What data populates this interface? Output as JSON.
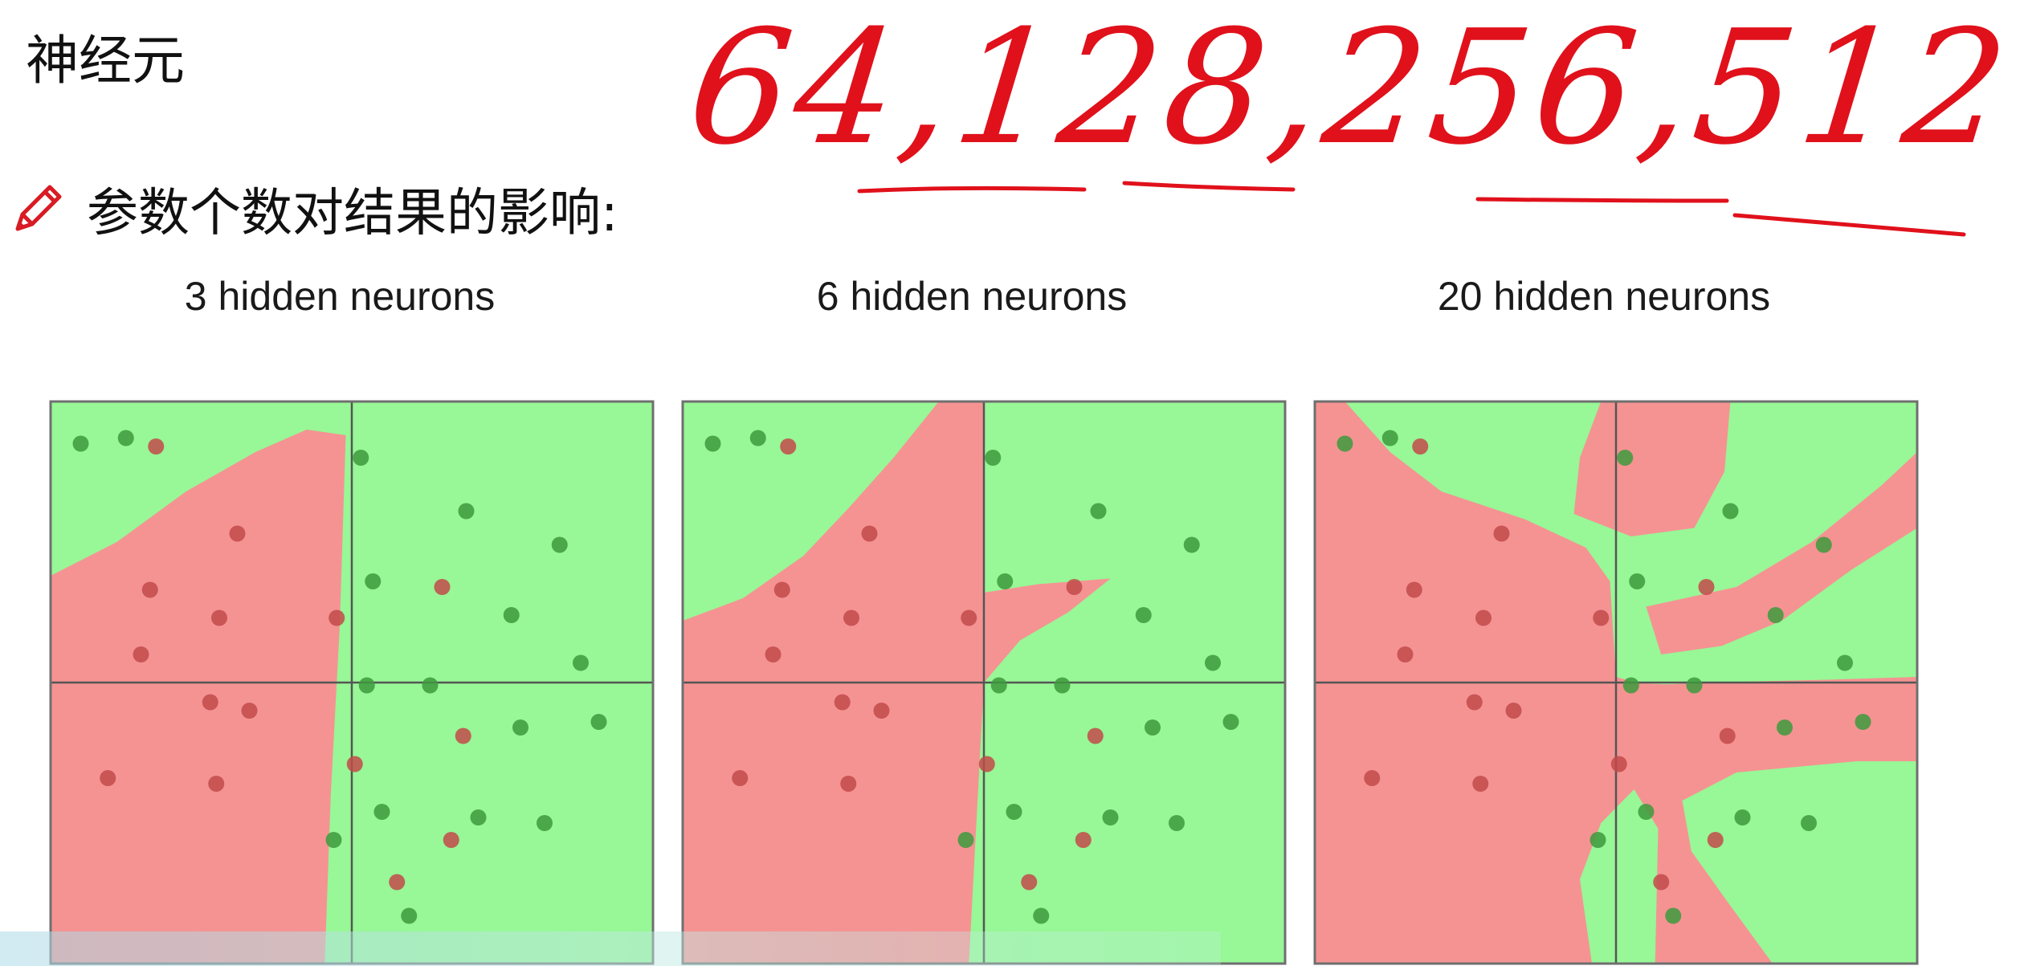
{
  "heading": "神经元",
  "subtitle": "参数个数对结果的影响:",
  "icons": {
    "subtitle_icon": "pencil-icon"
  },
  "handwriting": "64,128,256,512",
  "colors": {
    "class_a_region": "#f59393",
    "class_b_region": "#98f796",
    "class_a_point": "#c24a4a",
    "class_b_point": "#3d9a3d",
    "axis": "#555555",
    "ink": "#e0111b"
  },
  "panels": [
    {
      "title": "3 hidden neurons",
      "hidden_neurons": 3
    },
    {
      "title": "6 hidden neurons",
      "hidden_neurons": 6
    },
    {
      "title": "20 hidden neurons",
      "hidden_neurons": 20
    }
  ],
  "points": [
    {
      "class": "red",
      "x": -0.65,
      "y": 0.84
    },
    {
      "class": "red",
      "x": -0.38,
      "y": 0.53
    },
    {
      "class": "red",
      "x": -0.67,
      "y": 0.33
    },
    {
      "class": "red",
      "x": -0.44,
      "y": 0.23
    },
    {
      "class": "red",
      "x": -0.7,
      "y": 0.1
    },
    {
      "class": "red",
      "x": -0.05,
      "y": 0.23
    },
    {
      "class": "red",
      "x": 0.3,
      "y": 0.34
    },
    {
      "class": "red",
      "x": -0.47,
      "y": -0.07
    },
    {
      "class": "red",
      "x": -0.34,
      "y": -0.1
    },
    {
      "class": "red",
      "x": -0.81,
      "y": -0.34
    },
    {
      "class": "red",
      "x": -0.45,
      "y": -0.36
    },
    {
      "class": "red",
      "x": 0.01,
      "y": -0.29
    },
    {
      "class": "red",
      "x": 0.37,
      "y": -0.19
    },
    {
      "class": "red",
      "x": 0.33,
      "y": -0.56
    },
    {
      "class": "red",
      "x": 0.15,
      "y": -0.71
    },
    {
      "class": "green",
      "x": -0.9,
      "y": 0.85
    },
    {
      "class": "green",
      "x": -0.75,
      "y": 0.87
    },
    {
      "class": "green",
      "x": 0.03,
      "y": 0.8
    },
    {
      "class": "green",
      "x": 0.38,
      "y": 0.61
    },
    {
      "class": "green",
      "x": 0.69,
      "y": 0.49
    },
    {
      "class": "green",
      "x": 0.07,
      "y": 0.36
    },
    {
      "class": "green",
      "x": 0.53,
      "y": 0.24
    },
    {
      "class": "green",
      "x": 0.76,
      "y": 0.07
    },
    {
      "class": "green",
      "x": 0.05,
      "y": -0.01
    },
    {
      "class": "green",
      "x": 0.26,
      "y": -0.01
    },
    {
      "class": "green",
      "x": 0.56,
      "y": -0.16
    },
    {
      "class": "green",
      "x": 0.82,
      "y": -0.14
    },
    {
      "class": "green",
      "x": 0.1,
      "y": -0.46
    },
    {
      "class": "green",
      "x": 0.42,
      "y": -0.48
    },
    {
      "class": "green",
      "x": 0.64,
      "y": -0.5
    },
    {
      "class": "green",
      "x": -0.06,
      "y": -0.56
    },
    {
      "class": "green",
      "x": 0.19,
      "y": -0.83
    }
  ]
}
